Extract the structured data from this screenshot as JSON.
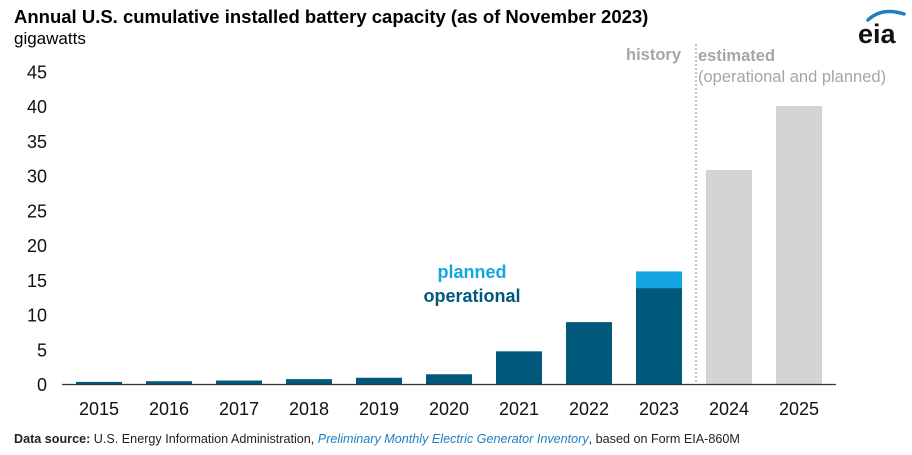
{
  "header": {
    "title": "Annual U.S. cumulative installed battery capacity (as of November 2023)",
    "unit": "gigawatts",
    "logo_text": "eia"
  },
  "colors": {
    "operational": "#00587c",
    "planned": "#13a6e0",
    "estimated": "#d4d4d4",
    "estimated_label": "#a6a6a6",
    "axis": "#333333",
    "divider": "#9a9a9a",
    "logo_arc": "#1f7fc0"
  },
  "chart_data": {
    "type": "bar",
    "stacked": true,
    "title": "Annual U.S. cumulative installed battery capacity (as of November 2023)",
    "ylabel": "gigawatts",
    "ylim": [
      0,
      45
    ],
    "yticks": [
      0,
      5,
      10,
      15,
      20,
      25,
      30,
      35,
      40,
      45
    ],
    "categories": [
      "2015",
      "2016",
      "2017",
      "2018",
      "2019",
      "2020",
      "2021",
      "2022",
      "2023",
      "2024",
      "2025"
    ],
    "series": [
      {
        "name": "operational",
        "values": [
          0.3,
          0.4,
          0.5,
          0.7,
          0.9,
          1.4,
          4.7,
          8.9,
          13.8,
          null,
          null
        ]
      },
      {
        "name": "planned",
        "values": [
          0,
          0,
          0,
          0,
          0,
          0,
          0,
          0,
          2.4,
          null,
          null
        ]
      },
      {
        "name": "estimated (operational and planned)",
        "values": [
          null,
          null,
          null,
          null,
          null,
          null,
          null,
          null,
          null,
          30.8,
          40.0
        ]
      }
    ],
    "legend": {
      "planned": "planned",
      "operational": "operational"
    },
    "annotations": {
      "history": "history",
      "estimated": "estimated",
      "estimated_sub": "(operational and planned)"
    }
  },
  "footer": {
    "source_label": "Data source:",
    "source_org": " U.S. Energy Information Administration, ",
    "source_title": "Preliminary Monthly Electric Generator Inventory",
    "source_tail": ", based on Form EIA-860M"
  }
}
